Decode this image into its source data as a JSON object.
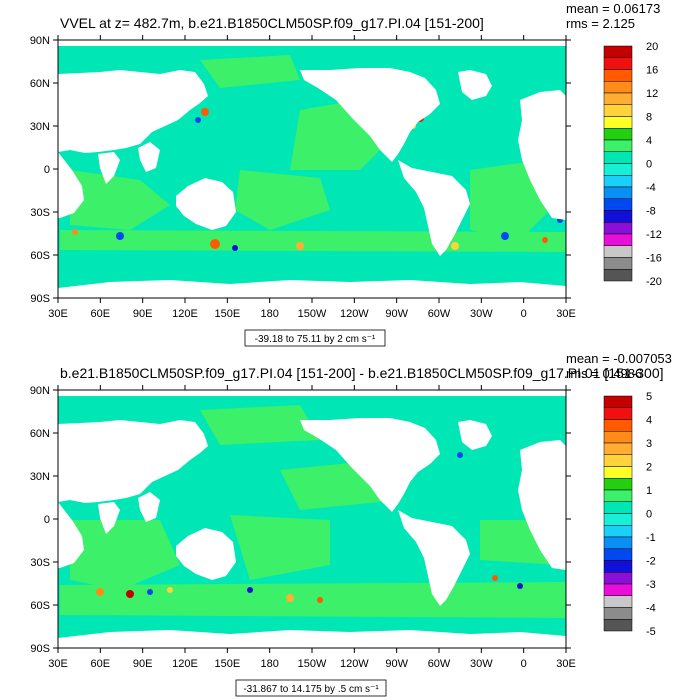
{
  "chart_data": [
    {
      "type": "heatmap",
      "title": "VVEL at z= 482.7m, b.e21.B1850CLM50SP.f09_g17.PI.04 [151-200]",
      "stats": [
        "mean = 0.06173",
        "rms = 2.125"
      ],
      "x_ticks": [
        "30E",
        "60E",
        "90E",
        "120E",
        "150E",
        "180",
        "150W",
        "120W",
        "90W",
        "60W",
        "30W",
        "0",
        "30E"
      ],
      "y_ticks": [
        "90N",
        "60N",
        "30N",
        "0",
        "30S",
        "60S",
        "90S"
      ],
      "xlim": [
        30,
        390
      ],
      "ylim": [
        -90,
        90
      ],
      "colorbar_labels": [
        "20",
        "16",
        "12",
        "8",
        "4",
        "0",
        "-4",
        "-8",
        "-12",
        "-16",
        "-20"
      ],
      "colorbar_colors": [
        "#c40000",
        "#f01010",
        "#ff5a00",
        "#ff8c1a",
        "#ffae33",
        "#ffd43a",
        "#ffff28",
        "#22d010",
        "#3cf06a",
        "#00e6b4",
        "#18f0d6",
        "#1ad0f8",
        "#0a90f4",
        "#0048f0",
        "#1010d8",
        "#8a10d8",
        "#e810d8",
        "#c8c8c8",
        "#8c8c8c",
        "#555555"
      ],
      "range_note": "-39.18 to 75.11 by 2 cm s⁻¹"
    },
    {
      "type": "heatmap",
      "title": "b.e21.B1850CLM50SP.f09_g17.PI.04 [151-200] - b.e21.B1850CLM50SP.f09_g17.PI.01 [151-300]",
      "stats": [
        "mean = -0.007053",
        "rms = 0.4986"
      ],
      "x_ticks": [
        "30E",
        "60E",
        "90E",
        "120E",
        "150E",
        "180",
        "150W",
        "120W",
        "90W",
        "60W",
        "30W",
        "0",
        "30E"
      ],
      "y_ticks": [
        "90N",
        "60N",
        "30N",
        "0",
        "30S",
        "60S",
        "90S"
      ],
      "xlim": [
        30,
        390
      ],
      "ylim": [
        -90,
        90
      ],
      "colorbar_labels": [
        "5",
        "4",
        "3",
        "2",
        "1",
        "0",
        "-1",
        "-2",
        "-3",
        "-4",
        "-5"
      ],
      "colorbar_colors": [
        "#c40000",
        "#f01010",
        "#ff5a00",
        "#ff8c1a",
        "#ffae33",
        "#ffd43a",
        "#ffff28",
        "#22d010",
        "#3cf06a",
        "#00e6b4",
        "#18f0d6",
        "#1ad0f8",
        "#0a90f4",
        "#0048f0",
        "#1010d8",
        "#8a10d8",
        "#e810d8",
        "#c8c8c8",
        "#8c8c8c",
        "#555555"
      ],
      "range_note": "-31.867 to 14.175 by .5 cm s⁻¹"
    }
  ],
  "colors": {
    "ocean_background": "#00e6b4",
    "ocean_band": "#3cf06a",
    "land": "#ffffff"
  }
}
